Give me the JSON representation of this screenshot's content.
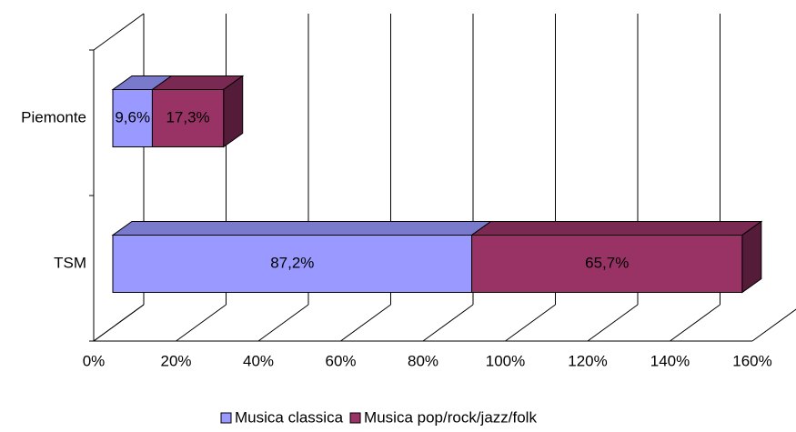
{
  "chart_data": {
    "type": "bar3d_stacked_horizontal",
    "categories": [
      "Piemonte",
      "TSM"
    ],
    "series": [
      {
        "name": "Musica classica",
        "color": "#9999ff",
        "values": [
          9.6,
          87.2
        ],
        "value_labels": [
          "9,6%",
          "87,2%"
        ]
      },
      {
        "name": "Musica pop/rock/jazz/folk",
        "color": "#993366",
        "values": [
          17.3,
          65.7
        ],
        "value_labels": [
          "17,3%",
          "65,7%"
        ]
      }
    ],
    "xlim": [
      0,
      160
    ],
    "xticks": [
      {
        "value": 0,
        "label": "0%"
      },
      {
        "value": 20,
        "label": "20%"
      },
      {
        "value": 40,
        "label": "40%"
      },
      {
        "value": 60,
        "label": "60%"
      },
      {
        "value": 80,
        "label": "80%"
      },
      {
        "value": 100,
        "label": "100%"
      },
      {
        "value": 120,
        "label": "120%"
      },
      {
        "value": 140,
        "label": "140%"
      },
      {
        "value": 160,
        "label": "160%"
      }
    ],
    "grid": true,
    "legend": "bottom"
  }
}
